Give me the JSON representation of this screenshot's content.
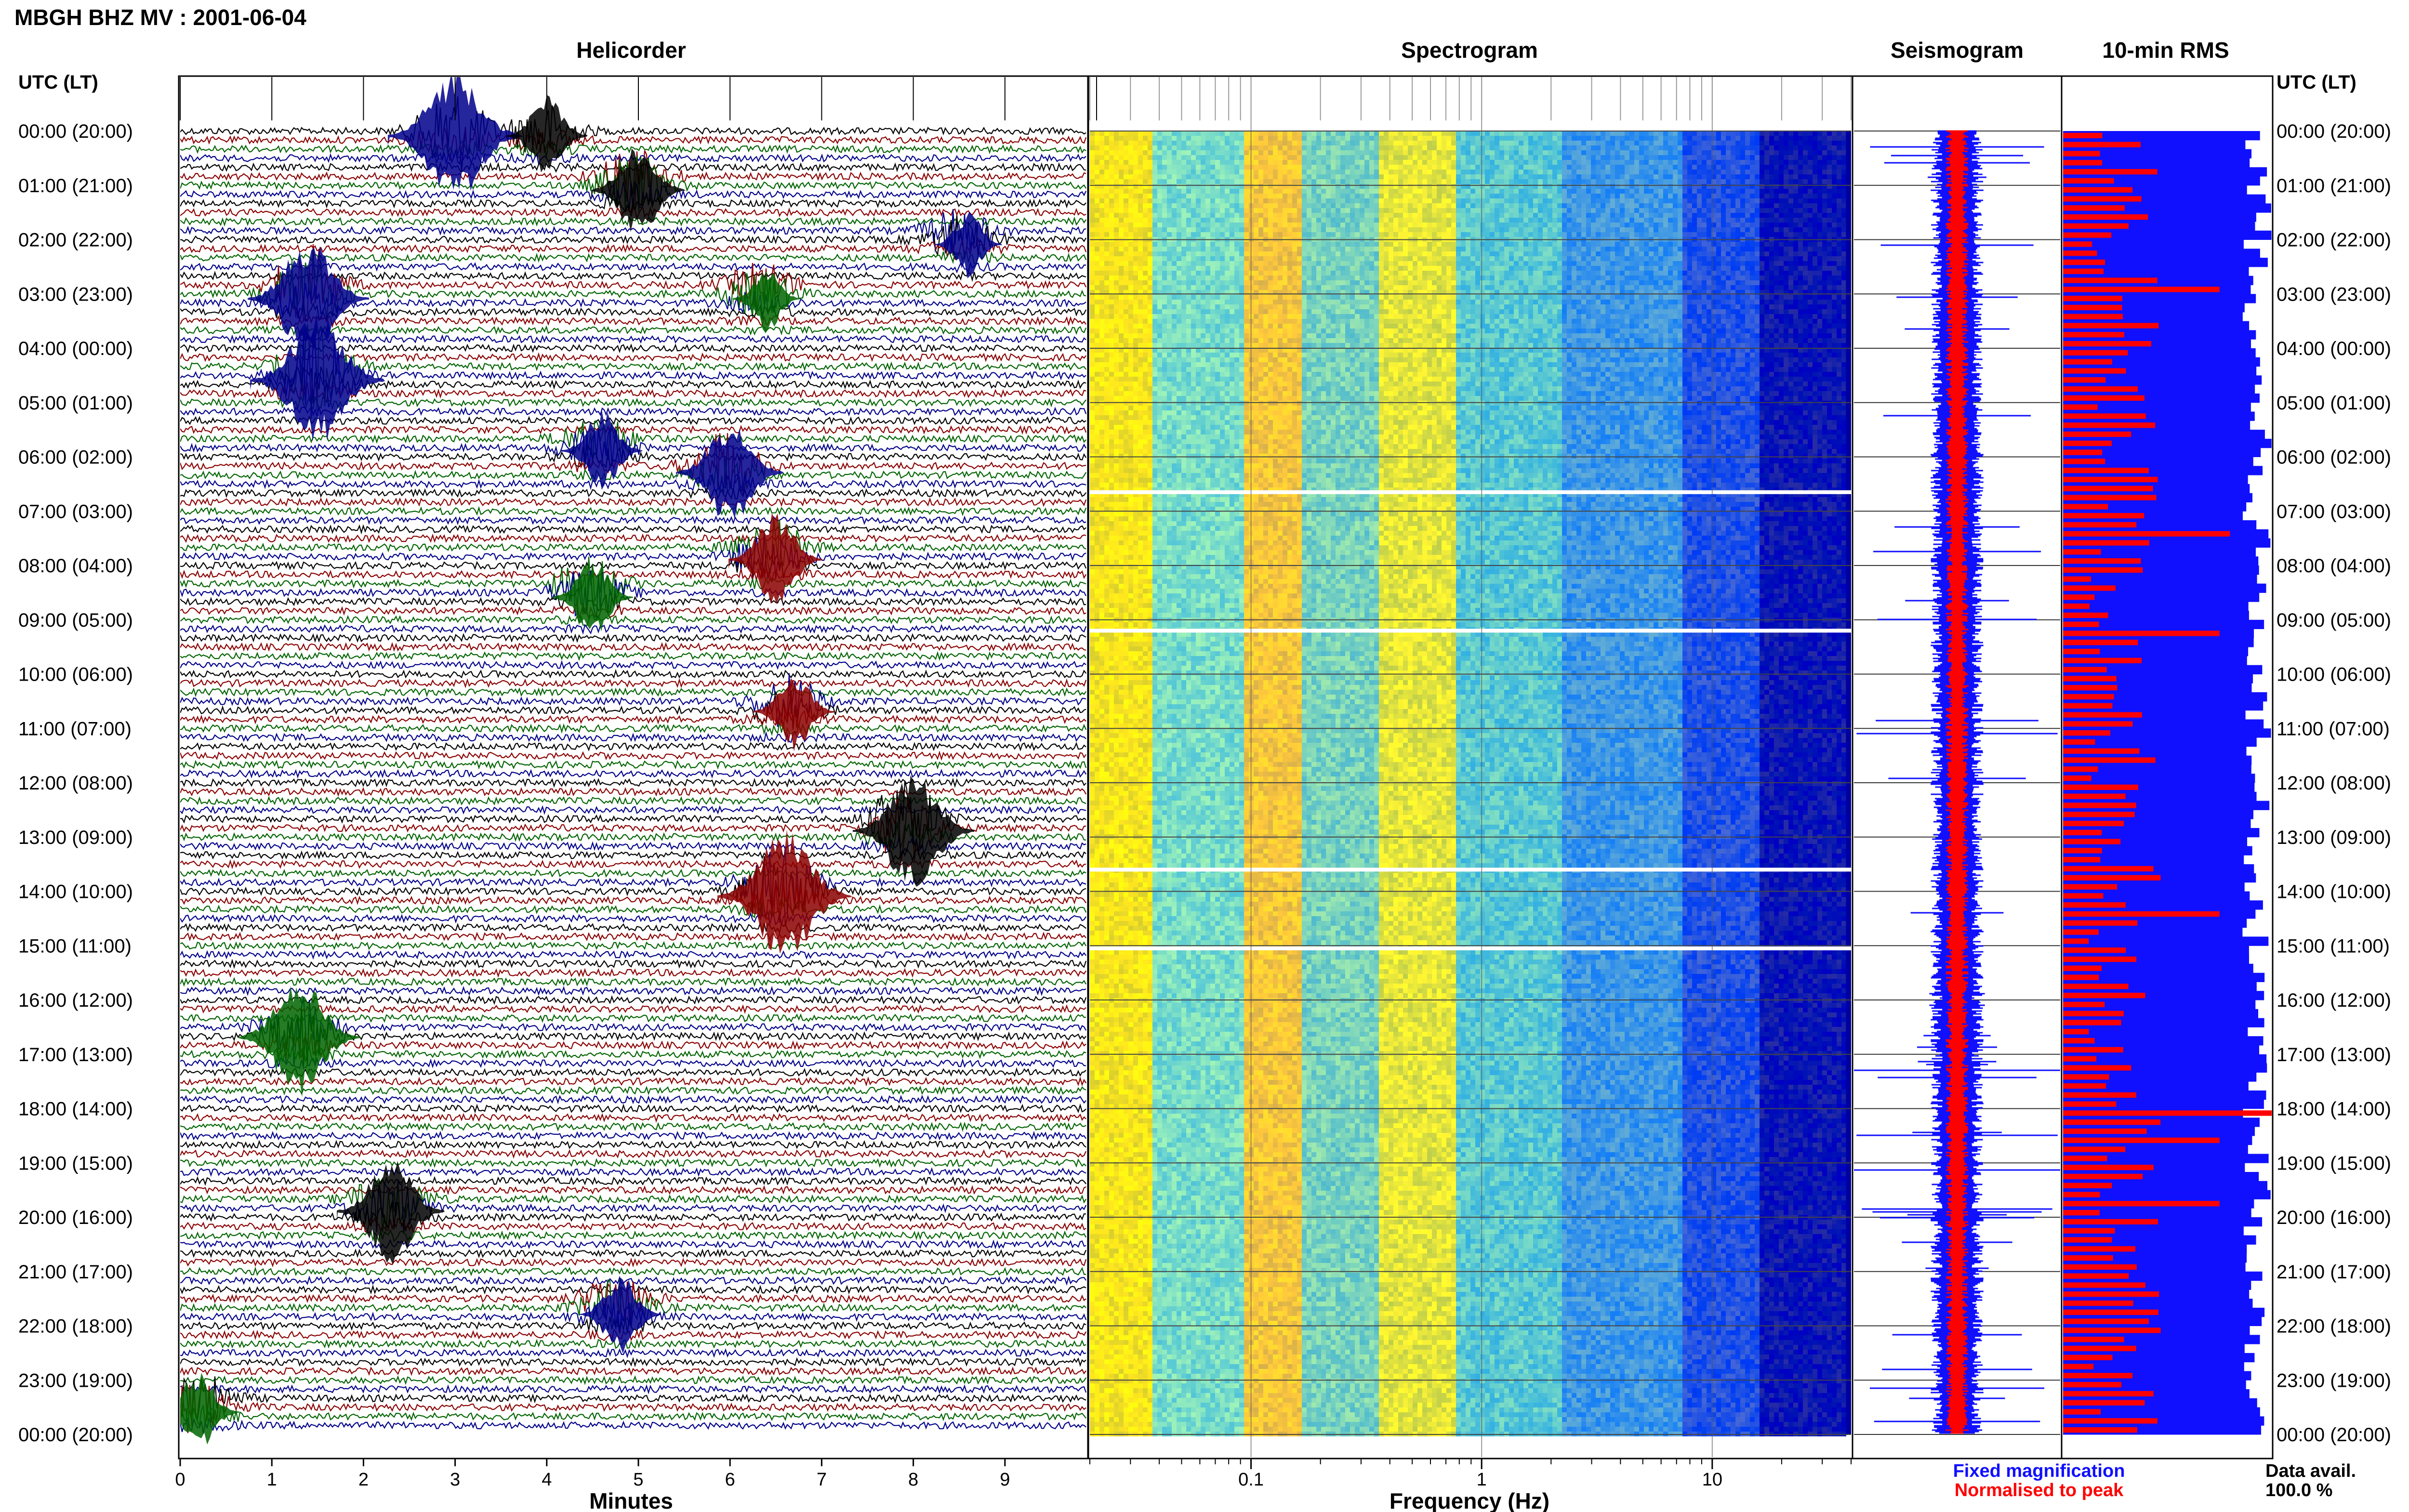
{
  "figure": {
    "title": "MBGH BHZ MV : 2001-06-04",
    "utc_lt_label": "UTC (LT)",
    "panels": {
      "helicorder": "Helicorder",
      "spectrogram": "Spectrogram",
      "seismogram": "Seismogram",
      "rms": "10-min RMS"
    },
    "xlabels": {
      "helicorder": "Minutes",
      "spectrogram": "Frequency (Hz)"
    },
    "legend": {
      "fixed": "Fixed magnification",
      "normalised": "Normalised to peak",
      "fixed_color": "#1010ff",
      "normalised_color": "#ff0000"
    },
    "data_availability": {
      "label": "Data avail.",
      "value": "100.0 %"
    }
  },
  "chart_data": {
    "type": "heatmap",
    "row_labels": [
      "00:00 (20:00)",
      "01:00 (21:00)",
      "02:00 (22:00)",
      "03:00 (23:00)",
      "04:00 (00:00)",
      "05:00 (01:00)",
      "06:00 (02:00)",
      "07:00 (03:00)",
      "08:00 (04:00)",
      "09:00 (05:00)",
      "10:00 (06:00)",
      "11:00 (07:00)",
      "12:00 (08:00)",
      "13:00 (09:00)",
      "14:00 (10:00)",
      "15:00 (11:00)",
      "16:00 (12:00)",
      "17:00 (13:00)",
      "18:00 (14:00)",
      "19:00 (15:00)",
      "20:00 (16:00)",
      "21:00 (17:00)",
      "22:00 (18:00)",
      "23:00 (19:00)",
      "00:00 (20:00)"
    ],
    "helicorder": {
      "xlim": [
        0,
        10
      ],
      "xticks": [
        "0",
        "1",
        "2",
        "3",
        "4",
        "5",
        "6",
        "7",
        "8",
        "9"
      ],
      "trace_colors": [
        "#000000",
        "#8b0000",
        "#006400",
        "#00008b"
      ],
      "events": [
        {
          "hour": 0.0,
          "minute": 3.0,
          "amp": 1.0,
          "color": "#00008b"
        },
        {
          "hour": 0.0,
          "minute": 4.0,
          "amp": 0.6,
          "color": "#000000"
        },
        {
          "hour": 1.0,
          "minute": 5.0,
          "amp": 0.7,
          "color": "#000000"
        },
        {
          "hour": 2.0,
          "minute": 8.6,
          "amp": 0.5,
          "color": "#00008b"
        },
        {
          "hour": 3.0,
          "minute": 1.4,
          "amp": 0.9,
          "color": "#00008b"
        },
        {
          "hour": 3.0,
          "minute": 6.4,
          "amp": 0.5,
          "color": "#006400"
        },
        {
          "hour": 4.5,
          "minute": 1.5,
          "amp": 1.0,
          "color": "#00008b"
        },
        {
          "hour": 5.8,
          "minute": 4.6,
          "amp": 0.6,
          "color": "#00008b"
        },
        {
          "hour": 6.2,
          "minute": 6.0,
          "amp": 0.8,
          "color": "#00008b"
        },
        {
          "hour": 7.8,
          "minute": 6.5,
          "amp": 0.7,
          "color": "#8b0000"
        },
        {
          "hour": 8.5,
          "minute": 4.5,
          "amp": 0.6,
          "color": "#006400"
        },
        {
          "hour": 10.6,
          "minute": 6.7,
          "amp": 0.6,
          "color": "#8b0000"
        },
        {
          "hour": 12.8,
          "minute": 8.0,
          "amp": 0.9,
          "color": "#000000"
        },
        {
          "hour": 14.0,
          "minute": 6.6,
          "amp": 1.0,
          "color": "#8b0000"
        },
        {
          "hour": 16.6,
          "minute": 1.3,
          "amp": 0.9,
          "color": "#006400"
        },
        {
          "hour": 19.8,
          "minute": 2.3,
          "amp": 0.8,
          "color": "#000000"
        },
        {
          "hour": 21.7,
          "minute": 4.8,
          "amp": 0.6,
          "color": "#00008b"
        },
        {
          "hour": 23.5,
          "minute": 0.2,
          "amp": 0.6,
          "color": "#006400"
        }
      ]
    },
    "spectrogram": {
      "x_scale": "log",
      "xlim": [
        0.02,
        40
      ],
      "xticks": [
        "0.1",
        "1",
        "10"
      ],
      "colormap": [
        "#ffff00",
        "#ff8800",
        "#00c8c8",
        "#0050ff",
        "#00008b"
      ],
      "gap_hours": [
        6.65,
        9.2,
        13.6,
        15.05
      ]
    },
    "rms": {
      "bin_minutes": 10,
      "series": [
        {
          "name": "Fixed magnification",
          "color": "#1010ff"
        },
        {
          "name": "Normalised to peak",
          "color": "#ff0000"
        }
      ],
      "normalised_peaks_fraction": [
        0.3,
        0.75,
        0.8,
        1.0,
        0.75,
        0.55,
        0.82
      ]
    }
  }
}
